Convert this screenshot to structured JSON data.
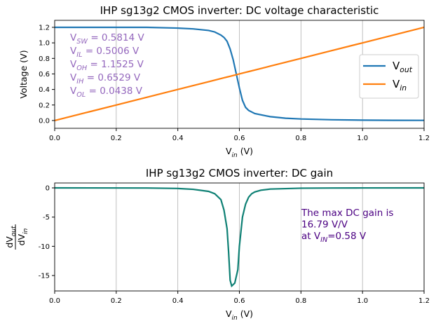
{
  "chart_data": [
    {
      "type": "line",
      "title": "IHP sg13g2 CMOS inverter: DC voltage characteristic",
      "xlabel": [
        {
          "text": "V"
        },
        {
          "text": "in",
          "sub": true
        },
        {
          "text": " (V)"
        }
      ],
      "ylabel": [
        {
          "text": "Voltage (V)"
        }
      ],
      "x": [
        0,
        0.1,
        0.2,
        0.3,
        0.4,
        0.45,
        0.5,
        0.52,
        0.54,
        0.55,
        0.56,
        0.57,
        0.58,
        0.59,
        0.6,
        0.61,
        0.62,
        0.63,
        0.65,
        0.7,
        0.75,
        0.8,
        0.9,
        1.0,
        1.1,
        1.2
      ],
      "series": [
        {
          "name": [
            {
              "text": "V"
            },
            {
              "text": "out",
              "sub": true
            }
          ],
          "color": "#1f77b4",
          "values": [
            1.2,
            1.2,
            1.2,
            1.2,
            1.19,
            1.18,
            1.16,
            1.14,
            1.1,
            1.07,
            1.02,
            0.92,
            0.78,
            0.6,
            0.42,
            0.26,
            0.17,
            0.13,
            0.09,
            0.05,
            0.03,
            0.02,
            0.01,
            0.005,
            0.003,
            0.002
          ]
        },
        {
          "name": [
            {
              "text": "V"
            },
            {
              "text": "in",
              "sub": true
            }
          ],
          "color": "#ff7f0e",
          "values": [
            0,
            0.1,
            0.2,
            0.3,
            0.4,
            0.45,
            0.5,
            0.52,
            0.54,
            0.55,
            0.56,
            0.57,
            0.58,
            0.59,
            0.6,
            0.61,
            0.62,
            0.63,
            0.65,
            0.7,
            0.75,
            0.8,
            0.9,
            1.0,
            1.1,
            1.2
          ]
        }
      ],
      "xlim": [
        0,
        1.2
      ],
      "ylim": [
        -0.1,
        1.29
      ],
      "xticks": [
        {
          "value": 0,
          "label": "0.0"
        },
        0.2,
        0.4,
        0.6,
        0.8,
        {
          "value": 1,
          "label": "1.0"
        },
        1.2
      ],
      "yticks": [
        {
          "value": 0,
          "label": "0.0"
        },
        0.2,
        0.4,
        0.6,
        0.8,
        {
          "value": 1,
          "label": "1.0"
        },
        1.2
      ],
      "grid": "x",
      "legend": "right",
      "annotation": {
        "color": "#9467bd",
        "lines": [
          [
            {
              "text": "V"
            },
            {
              "text": "SW",
              "sub": true
            },
            {
              "text": " = 0.5814 V"
            }
          ],
          [
            {
              "text": "V"
            },
            {
              "text": "IL",
              "sub": true
            },
            {
              "text": " = 0.5006 V"
            }
          ],
          [
            {
              "text": "V"
            },
            {
              "text": "OH",
              "sub": true
            },
            {
              "text": " = 1.1525 V"
            }
          ],
          [
            {
              "text": "V"
            },
            {
              "text": "IH",
              "sub": true
            },
            {
              "text": " = 0.6529 V"
            }
          ],
          [
            {
              "text": "V"
            },
            {
              "text": "OL",
              "sub": true
            },
            {
              "text": " = 0.0438 V"
            }
          ]
        ]
      }
    },
    {
      "type": "line",
      "title": "IHP sg13g2 CMOS inverter: DC gain",
      "xlabel": [
        {
          "text": "V"
        },
        {
          "text": "in",
          "sub": true
        },
        {
          "text": " (V)"
        }
      ],
      "ylabel": {
        "numerator": [
          {
            "text": "dV"
          },
          {
            "text": "out",
            "sub": true
          }
        ],
        "denominator": [
          {
            "text": "dV"
          },
          {
            "text": "in",
            "sub": true
          }
        ]
      },
      "x": [
        0,
        0.3,
        0.4,
        0.45,
        0.5,
        0.52,
        0.54,
        0.55,
        0.56,
        0.565,
        0.57,
        0.575,
        0.585,
        0.595,
        0.6,
        0.61,
        0.62,
        0.63,
        0.64,
        0.65,
        0.67,
        0.7,
        0.8,
        0.9,
        1.0,
        1.2
      ],
      "series": [
        {
          "name": null,
          "color": "#0e8074",
          "values": [
            0,
            -0.02,
            -0.1,
            -0.25,
            -0.6,
            -1.0,
            -2.0,
            -3.8,
            -7,
            -11,
            -15.8,
            -16.79,
            -16.3,
            -14,
            -10,
            -5,
            -2.8,
            -1.6,
            -1.0,
            -0.7,
            -0.4,
            -0.2,
            -0.05,
            -0.02,
            -0.01,
            0
          ]
        }
      ],
      "xlim": [
        0,
        1.2
      ],
      "ylim": [
        -17.64,
        0.84
      ],
      "xticks": [
        {
          "value": 0,
          "label": "0.0"
        },
        0.2,
        0.4,
        0.6,
        0.8,
        {
          "value": 1,
          "label": "1.0"
        },
        1.2
      ],
      "yticks": [
        0,
        -5,
        -10,
        -15
      ],
      "grid": "x",
      "annotation": {
        "color": "#4b0082",
        "lines": [
          [
            {
              "text": "The max DC gain is"
            }
          ],
          [
            {
              "text": "16.79 V/V"
            }
          ],
          [
            {
              "text": "at V"
            },
            {
              "text": "IN",
              "sub": true
            },
            {
              "text": "=0.58 V"
            }
          ]
        ]
      }
    }
  ]
}
